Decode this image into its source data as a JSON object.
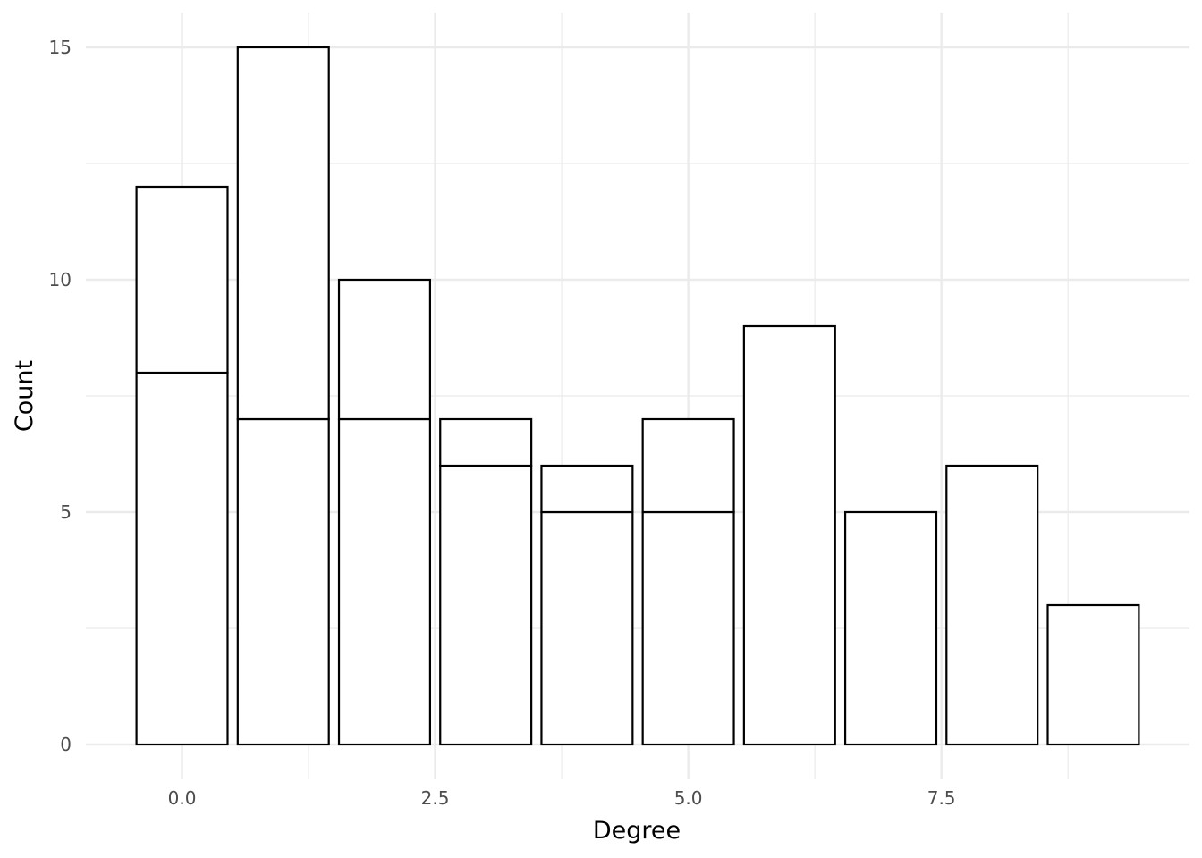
{
  "chart_data": {
    "type": "bar",
    "stacked": true,
    "xlabel": "Degree",
    "ylabel": "Count",
    "x": [
      0,
      1,
      2,
      3,
      4,
      5,
      6,
      7,
      8,
      9
    ],
    "series": [
      {
        "values": [
          8,
          7,
          7,
          6,
          5,
          5,
          9,
          5,
          6,
          3
        ]
      },
      {
        "values": [
          4,
          8,
          3,
          1,
          1,
          2,
          0,
          0,
          0,
          0
        ]
      }
    ],
    "xlim": [
      -0.95,
      9.95
    ],
    "ylim": [
      -0.75,
      15.75
    ],
    "x_ticks": [
      0,
      2.5,
      5,
      7.5
    ],
    "x_tick_labels": [
      "0.0",
      "2.5",
      "5.0",
      "7.5"
    ],
    "y_ticks": [
      0,
      5,
      10,
      15
    ],
    "y_tick_labels": [
      "0",
      "5",
      "10",
      "15"
    ],
    "grid": true,
    "legend": "none",
    "colors": {
      "bar_fill": "#ffffff",
      "bar_stroke": "#000000",
      "grid": "#ebebeb",
      "tick_text": "#4d4d4d"
    }
  }
}
